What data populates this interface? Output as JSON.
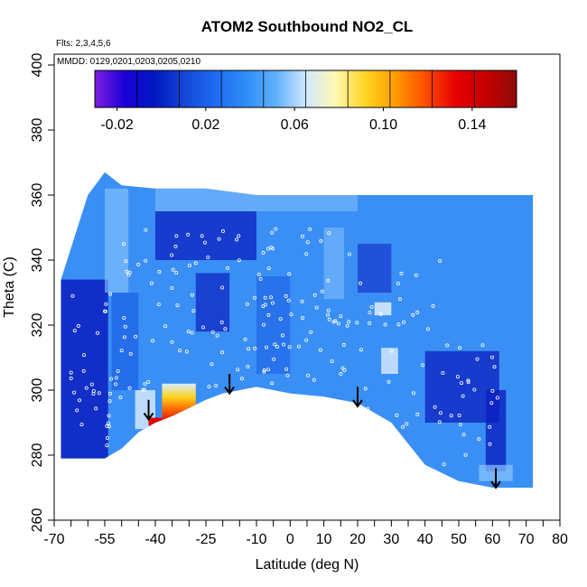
{
  "chart_data": {
    "type": "heatmap",
    "title": "ATOM2 Southbound NO2_CL",
    "flights_note": "Flts: 2,3,4,5,6",
    "dates_note": "MMDD: 0129,0201,0203,0205,0210",
    "xlabel": "Latitude (deg N)",
    "ylabel": "Theta (C)",
    "xlim": [
      -70,
      80
    ],
    "ylim": [
      260,
      400
    ],
    "x_ticks_labeled": [
      -70,
      -55,
      -40,
      -25,
      -10,
      0,
      10,
      20,
      30,
      40,
      50,
      60,
      70,
      80
    ],
    "x_ticks_minor": [
      -65,
      -60,
      -50,
      -45,
      -35,
      -30,
      -20,
      -15,
      -5,
      5,
      15,
      25,
      35,
      45,
      55,
      65,
      75
    ],
    "y_ticks": [
      260,
      280,
      300,
      320,
      340,
      360,
      380,
      400
    ],
    "colorbar": {
      "range": [
        -0.03,
        0.16
      ],
      "tick_values": [
        -0.02,
        0.02,
        0.06,
        0.1,
        0.14
      ],
      "tick_labels": [
        "-0.02",
        "0.02",
        "0.06",
        "0.10",
        "0.14"
      ],
      "colors": [
        "#7d1fe0",
        "#1a00d8",
        "#0019c2",
        "#1547d6",
        "#1e6cf2",
        "#2e8cf7",
        "#5fb0fa",
        "#cfe8ff",
        "#fff8b0",
        "#ffd420",
        "#ff9a00",
        "#ff4a00",
        "#e60000",
        "#c40000",
        "#8e0b0b"
      ]
    },
    "field": {
      "outline_top": [
        [
          -68,
          334
        ],
        [
          -60,
          360
        ],
        [
          -55,
          367
        ],
        [
          -50,
          363
        ],
        [
          -40,
          362
        ],
        [
          -25,
          362
        ],
        [
          -10,
          360
        ],
        [
          10,
          360
        ],
        [
          30,
          360
        ],
        [
          50,
          360
        ],
        [
          60,
          360
        ],
        [
          72,
          360
        ]
      ],
      "outline_bottom": [
        [
          72,
          270
        ],
        [
          60,
          270
        ],
        [
          50,
          272
        ],
        [
          40,
          277
        ],
        [
          30,
          290
        ],
        [
          20,
          296
        ],
        [
          10,
          298
        ],
        [
          0,
          299
        ],
        [
          -10,
          301
        ],
        [
          -20,
          299
        ],
        [
          -25,
          297
        ],
        [
          -35,
          292
        ],
        [
          -40,
          290
        ],
        [
          -45,
          287
        ],
        [
          -50,
          282
        ],
        [
          -55,
          279
        ],
        [
          -61,
          279
        ],
        [
          -68,
          279
        ]
      ],
      "warm_patch": {
        "lat_range": [
          -38,
          -28
        ],
        "theta_range": [
          290,
          302
        ],
        "max_value": 0.14
      },
      "small_warm_patch": {
        "lat": -40,
        "theta": 290,
        "value": 0.12
      }
    },
    "arrows": [
      {
        "lat": -42,
        "theta": 296
      },
      {
        "lat": -18,
        "theta": 304
      },
      {
        "lat": 20,
        "theta": 300
      },
      {
        "lat": 61,
        "theta": 275
      }
    ],
    "sample_density": "points"
  },
  "colors": {
    "background": "#ffffff",
    "field_base": "#3a8ff5",
    "dark_blue": "#0b1fbf",
    "mid_blue": "#1d5fe6",
    "light_blue": "#8cc6ff",
    "warm": "#ff6a00",
    "hot": "#e00000",
    "yellow": "#fff2a0"
  }
}
